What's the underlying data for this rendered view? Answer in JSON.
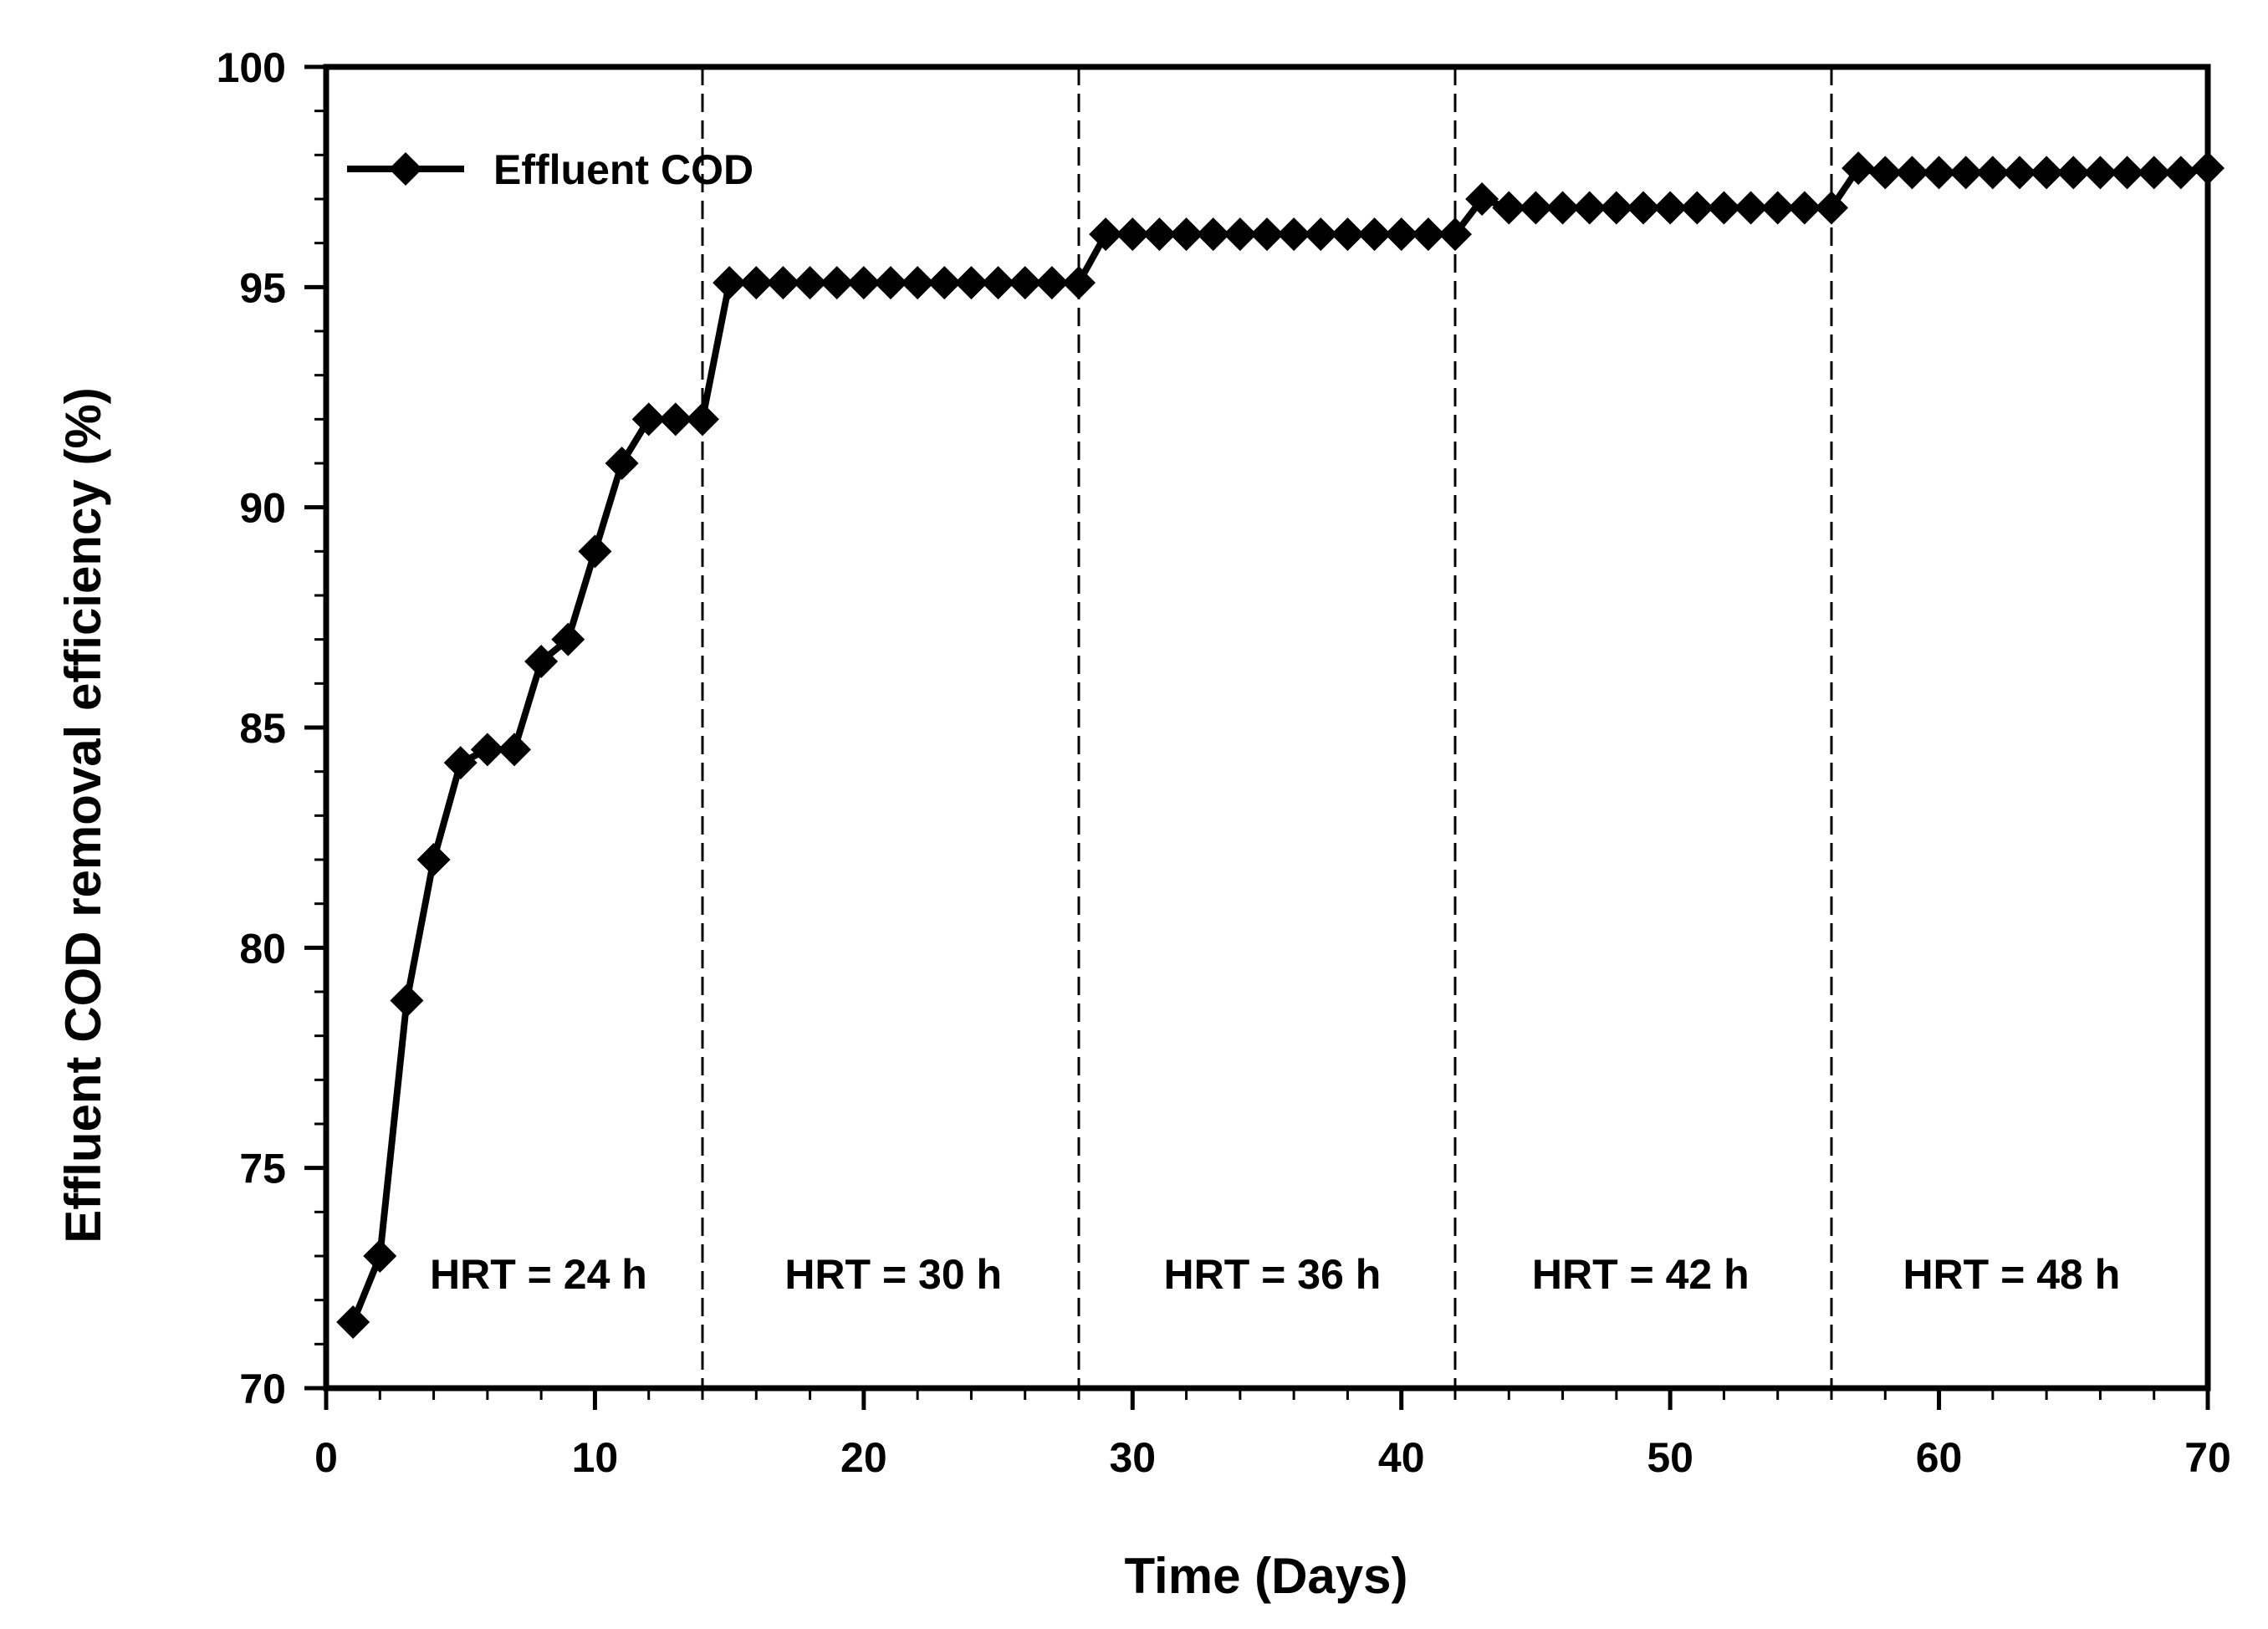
{
  "chart_data": {
    "type": "line",
    "title": "",
    "xlabel": "Time (Days)",
    "ylabel": "Effluent COD removal efficiency (%)",
    "xlim": [
      0,
      70
    ],
    "ylim": [
      70,
      100
    ],
    "xticks": [
      0,
      10,
      20,
      30,
      40,
      50,
      60,
      70
    ],
    "yticks": [
      70,
      75,
      80,
      85,
      90,
      95,
      100
    ],
    "xtick_labels": [
      "0",
      "10",
      "20",
      "30",
      "40",
      "50",
      "60",
      "70"
    ],
    "ytick_labels": [
      "70",
      "75",
      "80",
      "85",
      "90",
      "95",
      "100"
    ],
    "grid": false,
    "legend_position": "top-left",
    "series": [
      {
        "name": "Effluent COD",
        "marker": "diamond",
        "color": "#000000",
        "x": [
          1,
          2,
          3,
          4,
          5,
          6,
          7,
          8,
          9,
          10,
          11,
          12,
          13,
          14,
          15,
          16,
          17,
          18,
          19,
          20,
          21,
          22,
          23,
          24,
          25,
          26,
          27,
          28,
          29,
          30,
          31,
          32,
          33,
          34,
          35,
          36,
          37,
          38,
          39,
          40,
          41,
          42,
          43,
          44,
          45,
          46,
          47,
          48,
          49,
          50,
          51,
          52,
          53,
          54,
          55,
          56,
          57,
          58,
          59,
          60,
          61,
          62,
          63,
          64,
          65,
          66,
          67,
          68,
          69,
          70
        ],
        "y": [
          71.5,
          73,
          78.8,
          82,
          84.2,
          84.5,
          84.5,
          86.5,
          87,
          89,
          91,
          92,
          92,
          92,
          95.1,
          95.1,
          95.1,
          95.1,
          95.1,
          95.1,
          95.1,
          95.1,
          95.1,
          95.1,
          95.1,
          95.1,
          95.1,
          95.1,
          96.2,
          96.2,
          96.2,
          96.2,
          96.2,
          96.2,
          96.2,
          96.2,
          96.2,
          96.2,
          96.2,
          96.2,
          96.2,
          96.2,
          97,
          96.8,
          96.8,
          96.8,
          96.8,
          96.8,
          96.8,
          96.8,
          96.8,
          96.8,
          96.8,
          96.8,
          96.8,
          96.8,
          97.7,
          97.6,
          97.6,
          97.6,
          97.6,
          97.6,
          97.6,
          97.6,
          97.6,
          97.6,
          97.6,
          97.6,
          97.6,
          97.7
        ]
      }
    ],
    "phase_boundaries": [
      14,
      28,
      42,
      56
    ],
    "annotations": [
      {
        "text": "HRT = 24 h",
        "x": 7.9
      },
      {
        "text": "HRT = 30 h",
        "x": 21.1
      },
      {
        "text": "HRT = 36 h",
        "x": 35.2
      },
      {
        "text": "HRT = 42 h",
        "x": 48.9
      },
      {
        "text": "HRT = 48 h",
        "x": 62.7
      }
    ],
    "annotation_y": 72.6
  }
}
